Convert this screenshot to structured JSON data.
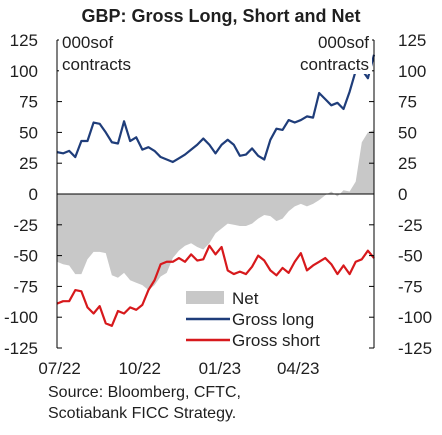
{
  "chart_data": {
    "type": "line",
    "title": "GBP: Gross Long, Short and Net",
    "unit_label_left": "000s of contracts",
    "unit_label_right": "000s of contracts",
    "x_tick_labels": [
      "07/22",
      "10/22",
      "01/23",
      "04/23"
    ],
    "y_ticks": [
      125,
      100,
      75,
      50,
      25,
      0,
      -25,
      -50,
      -75,
      -100,
      -125
    ],
    "ylim": [
      -125,
      125
    ],
    "grid": false,
    "legend_position": "bottom-right",
    "x": [
      "2022-06-28",
      "2022-07-05",
      "2022-07-12",
      "2022-07-19",
      "2022-07-26",
      "2022-08-02",
      "2022-08-09",
      "2022-08-16",
      "2022-08-23",
      "2022-08-30",
      "2022-09-06",
      "2022-09-13",
      "2022-09-20",
      "2022-09-27",
      "2022-10-04",
      "2022-10-11",
      "2022-10-18",
      "2022-10-25",
      "2022-11-01",
      "2022-11-08",
      "2022-11-15",
      "2022-11-22",
      "2022-11-29",
      "2022-12-06",
      "2022-12-13",
      "2022-12-20",
      "2022-12-27",
      "2023-01-03",
      "2023-01-10",
      "2023-01-17",
      "2023-01-24",
      "2023-01-31",
      "2023-02-07",
      "2023-02-14",
      "2023-02-21",
      "2023-02-28",
      "2023-03-07",
      "2023-03-14",
      "2023-03-21",
      "2023-03-28",
      "2023-04-04",
      "2023-04-11",
      "2023-04-18",
      "2023-04-25",
      "2023-05-02",
      "2023-05-09",
      "2023-05-16",
      "2023-05-23",
      "2023-05-30",
      "2023-06-06",
      "2023-06-13",
      "2023-06-20",
      "2023-06-27"
    ],
    "series": [
      {
        "name": "Net",
        "kind": "area",
        "color": "#c8c8c8",
        "values": [
          -55,
          -57,
          -58,
          -65,
          -65,
          -53,
          -47,
          -47,
          -48,
          -66,
          -68,
          -64,
          -70,
          -72,
          -74,
          -78,
          -74,
          -67,
          -64,
          -52,
          -46,
          -42,
          -40,
          -43,
          -45,
          -40,
          -32,
          -28,
          -24,
          -25,
          -26,
          -26,
          -24,
          -20,
          -17,
          -18,
          -22,
          -20,
          -14,
          -10,
          -8,
          -10,
          -8,
          -5,
          -1,
          2,
          -2,
          3,
          2,
          10,
          42,
          50,
          52
        ]
      },
      {
        "name": "Gross long",
        "kind": "line",
        "color": "#1f3d7a",
        "values": [
          34,
          33,
          35,
          30,
          43,
          43,
          58,
          57,
          50,
          42,
          41,
          59,
          43,
          46,
          36,
          38,
          35,
          30,
          28,
          26,
          29,
          32,
          36,
          40,
          45,
          40,
          33,
          40,
          44,
          40,
          31,
          32,
          37,
          31,
          28,
          44,
          53,
          52,
          60,
          58,
          60,
          63,
          62,
          82,
          77,
          72,
          74,
          69,
          83,
          100,
          101,
          94,
          113
        ]
      },
      {
        "name": "Gross short",
        "kind": "line",
        "color": "#d7191c",
        "values": [
          -89,
          -87,
          -87,
          -78,
          -79,
          -92,
          -97,
          -91,
          -105,
          -107,
          -95,
          -97,
          -92,
          -94,
          -90,
          -78,
          -70,
          -57,
          -55,
          -55,
          -52,
          -55,
          -49,
          -54,
          -53,
          -42,
          -49,
          -43,
          -62,
          -65,
          -63,
          -65,
          -59,
          -50,
          -54,
          -62,
          -66,
          -60,
          -64,
          -55,
          -48,
          -62,
          -58,
          -55,
          -52,
          -57,
          -65,
          -58,
          -65,
          -55,
          -53,
          -46,
          -52
        ]
      }
    ]
  }
}
